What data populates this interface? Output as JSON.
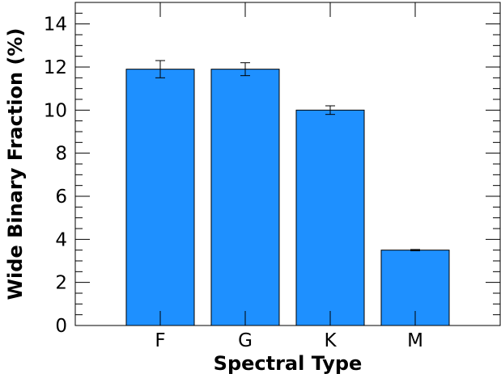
{
  "chart_data": {
    "type": "bar",
    "xlabel": "Spectral Type",
    "ylabel": "Wide Binary Fraction (%)",
    "categories": [
      "F",
      "G",
      "K",
      "M"
    ],
    "values": [
      11.9,
      11.9,
      10.0,
      3.5
    ],
    "errors": [
      0.4,
      0.3,
      0.2,
      0.03
    ],
    "ylim": [
      0,
      15
    ],
    "yticks": [
      0,
      2,
      4,
      6,
      8,
      10,
      12,
      14
    ],
    "grid": false,
    "bar_color": "#1e90ff",
    "edge_color": "#000000"
  }
}
